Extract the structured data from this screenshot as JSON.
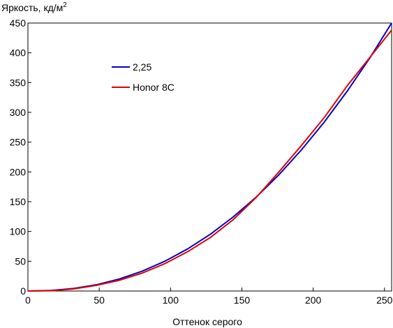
{
  "chart_data": {
    "type": "line",
    "ylabel": "Яркость, кд/м",
    "ylabel_sup": "2",
    "xlabel": "Оттенок серого",
    "x": [
      0,
      16,
      32,
      48,
      64,
      80,
      96,
      112,
      128,
      144,
      160,
      176,
      192,
      208,
      224,
      240,
      255
    ],
    "series": [
      {
        "name": "2,25",
        "color": "#0000c8",
        "values": [
          0,
          0.9,
          4.2,
          10.5,
          20.1,
          33.2,
          50,
          70.7,
          95.4,
          124.5,
          157.6,
          195.2,
          237.6,
          284.3,
          336,
          392.4,
          450
        ]
      },
      {
        "name": "Honor 8C",
        "color": "#e00000",
        "values": [
          0,
          0.5,
          3.5,
          9.5,
          18,
          30,
          46,
          66,
          90,
          120,
          157,
          200,
          245,
          292,
          345,
          393,
          438
        ]
      }
    ],
    "xlim": [
      0,
      255
    ],
    "ylim": [
      0,
      450
    ],
    "xticks": [
      0,
      50,
      100,
      150,
      200,
      250
    ],
    "yticks": [
      0,
      50,
      100,
      150,
      200,
      250,
      300,
      350,
      400,
      450
    ],
    "grid": false
  }
}
